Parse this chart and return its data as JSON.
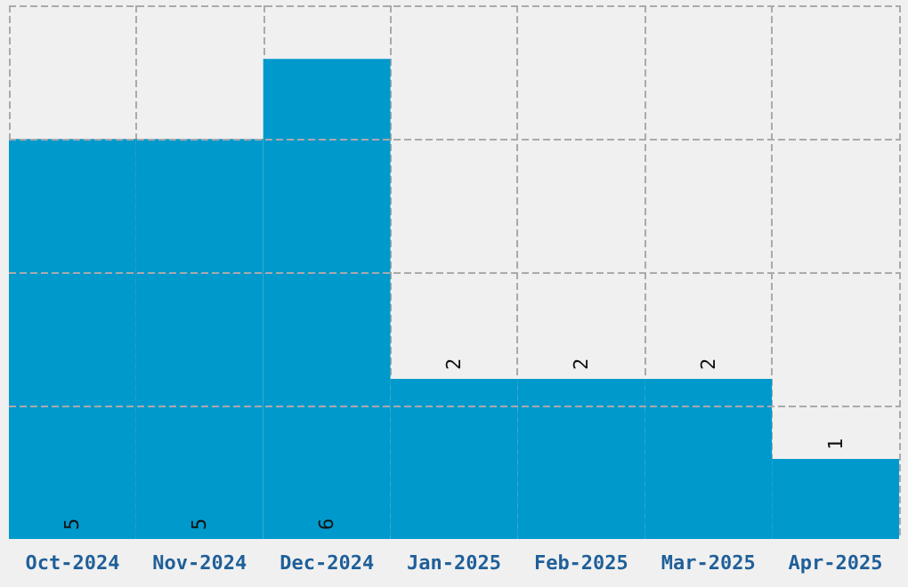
{
  "chart_data": {
    "type": "bar",
    "categories": [
      "Oct-2024",
      "Nov-2024",
      "Dec-2024",
      "Jan-2025",
      "Feb-2025",
      "Mar-2025",
      "Apr-2025"
    ],
    "values": [
      5,
      5,
      6,
      2,
      2,
      2,
      1
    ],
    "color": "#0099cc",
    "data_labels": true,
    "ylim": [
      0,
      6.67
    ],
    "yticks": [
      {
        "value": 1.67,
        "label": null
      },
      {
        "value": 3.33,
        "label": null
      },
      {
        "value": 5,
        "label": null
      },
      {
        "value": 6.67,
        "label": null
      }
    ],
    "grid": true,
    "tick_labels": "x"
  }
}
